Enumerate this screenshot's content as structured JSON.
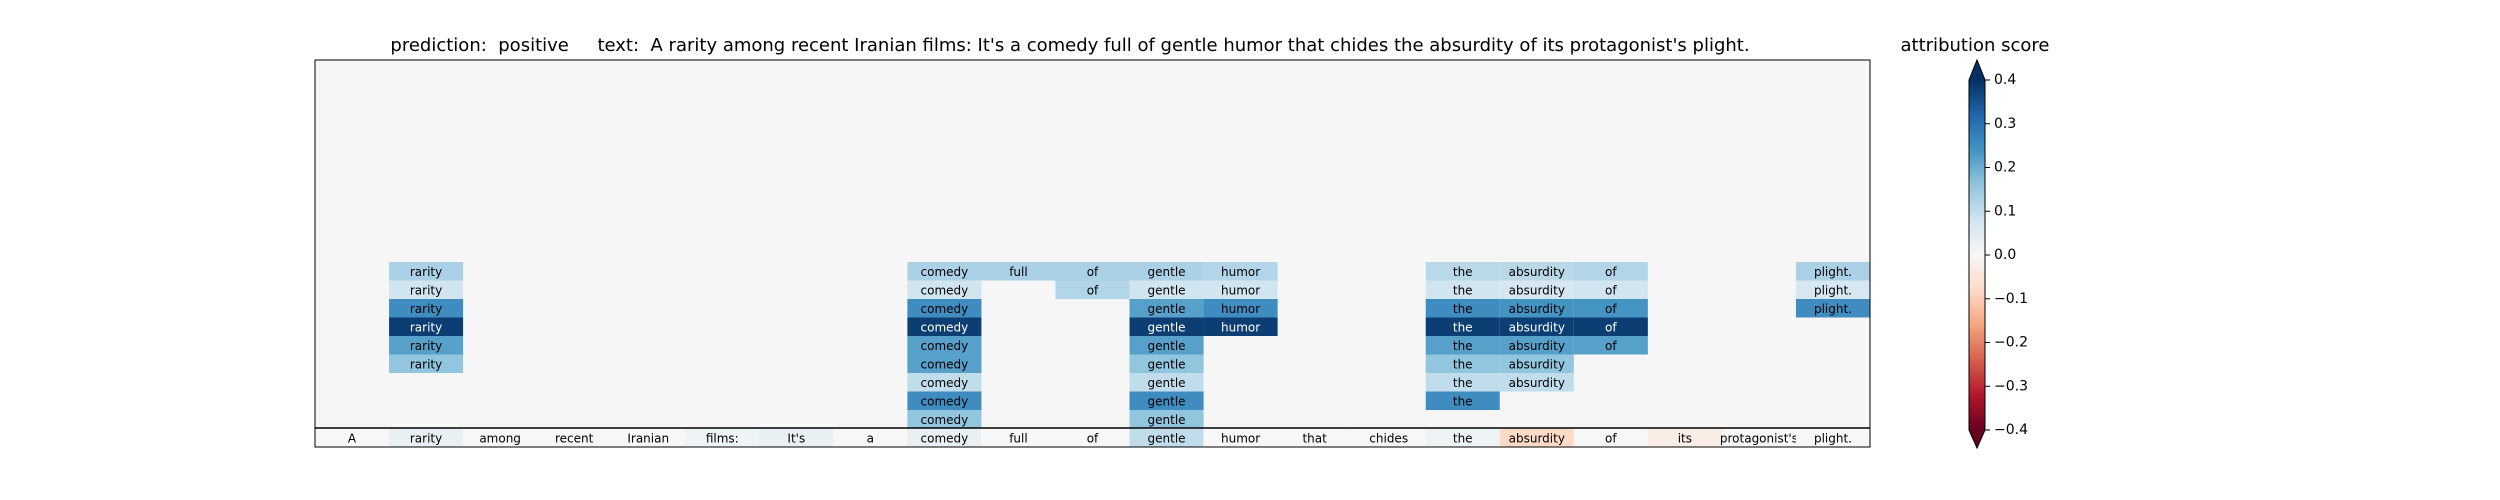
{
  "figure": {
    "prediction_label": "prediction:",
    "prediction_value": "positive",
    "text_label": "text:",
    "text_value": "A rarity among recent Iranian films: It's a comedy full of gentle humor that chides the absurdity of its protagonist's plight.",
    "colorbar_title": "attribution score"
  },
  "colors": {
    "background": "#f5f6f5",
    "colormap": "RdBu",
    "colormap_stops": [
      "#67001f",
      "#b2182b",
      "#d6604d",
      "#f4a582",
      "#fddbc7",
      "#f7f7f7",
      "#d1e5f0",
      "#92c5de",
      "#4393c3",
      "#2166ac",
      "#053061"
    ]
  },
  "chart_data": {
    "type": "heatmap",
    "colormap": "RdBu",
    "vmin": -0.4,
    "vmax": 0.4,
    "colorbar_ticks": [
      "0.4",
      "0.3",
      "0.2",
      "0.1",
      "0.0",
      "−0.1",
      "−0.2",
      "−0.3",
      "−0.4"
    ],
    "colorbar_tick_values": [
      0.4,
      0.3,
      0.2,
      0.1,
      0.0,
      -0.1,
      -0.2,
      -0.3,
      -0.4
    ],
    "tokens": [
      "A",
      "rarity",
      "among",
      "recent",
      "Iranian",
      "films:",
      "It's",
      "a",
      "comedy",
      "full",
      "of",
      "gentle",
      "humor",
      "that",
      "chides",
      "the",
      "absurdity",
      "of",
      "its",
      "protagonist's",
      "plight."
    ],
    "token_scores": [
      0.0,
      0.03,
      0.0,
      0.0,
      0.0,
      0.02,
      0.03,
      0.0,
      0.03,
      0.0,
      0.0,
      0.1,
      0.0,
      0.0,
      0.0,
      0.02,
      -0.08,
      0.0,
      -0.03,
      0.0,
      0.0
    ],
    "layers": [
      {
        "cells": [
          {
            "token": 1,
            "score": 0.13
          },
          {
            "token": 8,
            "score": 0.13
          },
          {
            "token": 9,
            "score": 0.13
          },
          {
            "token": 10,
            "score": 0.13
          },
          {
            "token": 11,
            "score": 0.13
          },
          {
            "token": 12,
            "score": 0.12
          },
          {
            "token": 15,
            "score": 0.11
          },
          {
            "token": 16,
            "score": 0.11
          },
          {
            "token": 17,
            "score": 0.12
          },
          {
            "token": 20,
            "score": 0.13
          }
        ]
      },
      {
        "cells": [
          {
            "token": 1,
            "score": 0.08
          },
          {
            "token": 8,
            "score": 0.08
          },
          {
            "token": 10,
            "score": 0.12
          },
          {
            "token": 11,
            "score": 0.08
          },
          {
            "token": 12,
            "score": 0.08
          },
          {
            "token": 15,
            "score": 0.08
          },
          {
            "token": 16,
            "score": 0.07
          },
          {
            "token": 17,
            "score": 0.08
          },
          {
            "token": 20,
            "score": 0.07
          }
        ]
      },
      {
        "cells": [
          {
            "token": 1,
            "score": 0.25
          },
          {
            "token": 8,
            "score": 0.25
          },
          {
            "token": 11,
            "score": 0.22
          },
          {
            "token": 12,
            "score": 0.25
          },
          {
            "token": 15,
            "score": 0.25
          },
          {
            "token": 16,
            "score": 0.24
          },
          {
            "token": 17,
            "score": 0.24
          },
          {
            "token": 20,
            "score": 0.25
          }
        ]
      },
      {
        "cells": [
          {
            "token": 1,
            "score": 0.38
          },
          {
            "token": 8,
            "score": 0.38
          },
          {
            "token": 11,
            "score": 0.38
          },
          {
            "token": 12,
            "score": 0.38
          },
          {
            "token": 15,
            "score": 0.38
          },
          {
            "token": 16,
            "score": 0.38
          },
          {
            "token": 17,
            "score": 0.38
          }
        ]
      },
      {
        "cells": [
          {
            "token": 1,
            "score": 0.22
          },
          {
            "token": 8,
            "score": 0.22
          },
          {
            "token": 11,
            "score": 0.22
          },
          {
            "token": 15,
            "score": 0.22
          },
          {
            "token": 16,
            "score": 0.22
          },
          {
            "token": 17,
            "score": 0.22
          }
        ]
      },
      {
        "cells": [
          {
            "token": 1,
            "score": 0.16
          },
          {
            "token": 8,
            "score": 0.22
          },
          {
            "token": 11,
            "score": 0.16
          },
          {
            "token": 15,
            "score": 0.16
          },
          {
            "token": 16,
            "score": 0.16
          }
        ]
      },
      {
        "cells": [
          {
            "token": 8,
            "score": 0.1
          },
          {
            "token": 11,
            "score": 0.1
          },
          {
            "token": 15,
            "score": 0.1
          },
          {
            "token": 16,
            "score": 0.1
          }
        ]
      },
      {
        "cells": [
          {
            "token": 8,
            "score": 0.25
          },
          {
            "token": 11,
            "score": 0.25
          },
          {
            "token": 15,
            "score": 0.25
          }
        ]
      },
      {
        "cells": [
          {
            "token": 8,
            "score": 0.16
          },
          {
            "token": 11,
            "score": 0.16
          }
        ]
      }
    ]
  }
}
